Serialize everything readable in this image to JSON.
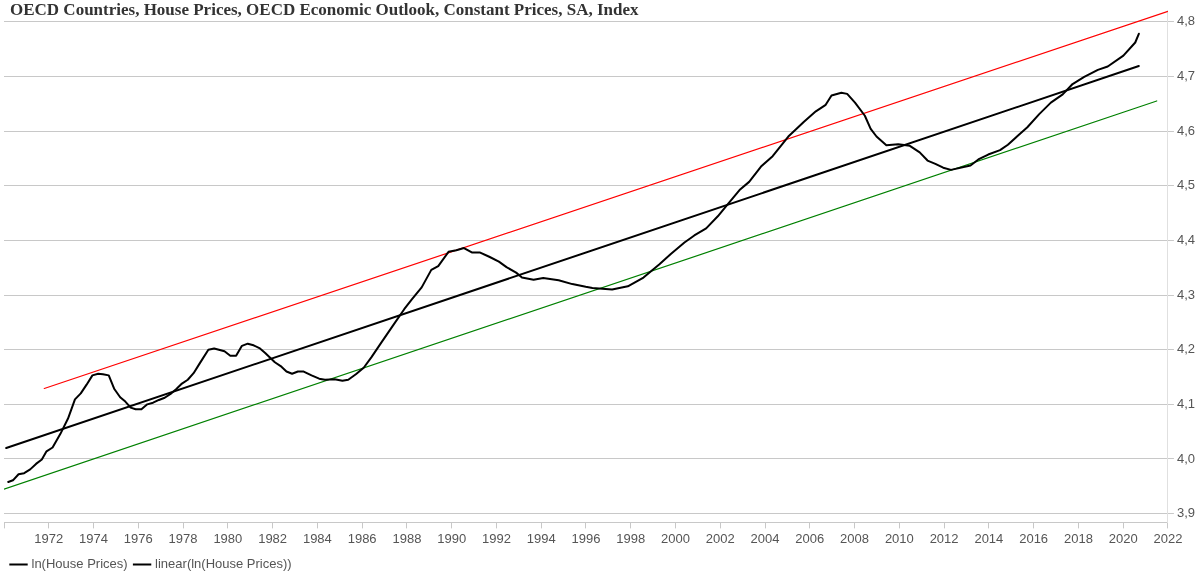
{
  "chart_data": {
    "type": "line",
    "title": "OECD Countries, House Prices, OECD Economic Outlook, Constant Prices, SA, Index",
    "xlim": [
      1970,
      2022
    ],
    "xticks": [
      {
        "value": 1970,
        "label": null
      },
      1972,
      1974,
      1976,
      1978,
      1980,
      1982,
      1984,
      1986,
      1988,
      1990,
      1992,
      1994,
      1996,
      1998,
      2000,
      2002,
      2004,
      2006,
      2008,
      2010,
      2012,
      2014,
      2016,
      2018,
      2020,
      2022
    ],
    "ylim": [
      3.884,
      4.82
    ],
    "yticks": [
      {
        "value": 3.9,
        "label": "3,9"
      },
      {
        "value": 4.0,
        "label": "4,0"
      },
      {
        "value": 4.1,
        "label": "4,1"
      },
      {
        "value": 4.2,
        "label": "4,2"
      },
      {
        "value": 4.3,
        "label": "4,3"
      },
      {
        "value": 4.4,
        "label": "4,4"
      },
      {
        "value": 4.5,
        "label": "4,5"
      },
      {
        "value": 4.6,
        "label": "4,6"
      },
      {
        "value": 4.7,
        "label": "4,7"
      },
      {
        "value": 4.8,
        "label": "4,8"
      }
    ],
    "grid": "y",
    "legend": "bottom left",
    "marker": "none",
    "line_style": "solid",
    "series": [
      {
        "name": "ln(House Prices)",
        "color": "#000000",
        "x": [
          1970.19,
          1970.4,
          1970.65,
          1970.9,
          1971.17,
          1971.43,
          1971.69,
          1971.9,
          1972.17,
          1972.52,
          1972.86,
          1973.17,
          1973.43,
          1973.69,
          1973.95,
          1974.21,
          1974.42,
          1974.68,
          1974.93,
          1975.19,
          1975.42,
          1975.66,
          1975.88,
          1976.14,
          1976.4,
          1976.66,
          1976.92,
          1977.18,
          1977.44,
          1977.7,
          1977.95,
          1978.21,
          1978.47,
          1978.73,
          1979.13,
          1979.39,
          1979.6,
          1979.85,
          1980.11,
          1980.37,
          1980.63,
          1980.89,
          1981.15,
          1981.41,
          1981.67,
          1982.1,
          1982.36,
          1982.62,
          1982.87,
          1983.13,
          1983.39,
          1983.74,
          1984.08,
          1984.34,
          1984.77,
          1985.12,
          1985.38,
          1985.72,
          1986.07,
          1986.41,
          1986.84,
          1987.36,
          1987.88,
          1988.22,
          1988.66,
          1989.09,
          1989.4,
          1989.86,
          1990.21,
          1990.55,
          1990.9,
          1991.25,
          1991.68,
          1992.11,
          1992.45,
          1992.88,
          1993.14,
          1993.66,
          1994.09,
          1994.78,
          1995.39,
          1995.99,
          1996.29,
          1997.17,
          1997.87,
          1998.57,
          1999.27,
          1999.79,
          2000.4,
          2000.84,
          2001.37,
          2001.89,
          2002.33,
          2002.86,
          2003.29,
          2003.82,
          2004.34,
          2005.04,
          2005.74,
          2006.27,
          2006.71,
          2006.97,
          2007.41,
          2007.67,
          2008.02,
          2008.46,
          2008.72,
          2008.98,
          2009.42,
          2009.95,
          2010.47,
          2010.91,
          2011.26,
          2011.61,
          2011.96,
          2012.31,
          2013.18,
          2013.53,
          2013.97,
          2014.5,
          2014.85,
          2015.28,
          2015.72,
          2016.25,
          2016.77,
          2017.3,
          2017.74,
          2018.26,
          2018.87,
          2019.31,
          2020.01,
          2020.54,
          2020.7
        ],
        "values": [
          3.958,
          3.961,
          3.972,
          3.974,
          3.981,
          3.991,
          3.999,
          4.014,
          4.021,
          4.046,
          4.074,
          4.109,
          4.12,
          4.136,
          4.153,
          4.156,
          4.155,
          4.153,
          4.128,
          4.113,
          4.105,
          4.094,
          4.091,
          4.091,
          4.1,
          4.103,
          4.108,
          4.112,
          4.119,
          4.128,
          4.138,
          4.145,
          4.157,
          4.174,
          4.2,
          4.202,
          4.2,
          4.197,
          4.189,
          4.189,
          4.207,
          4.211,
          4.208,
          4.203,
          4.194,
          4.177,
          4.17,
          4.16,
          4.156,
          4.16,
          4.16,
          4.153,
          4.147,
          4.145,
          4.146,
          4.143,
          4.145,
          4.155,
          4.167,
          4.186,
          4.212,
          4.243,
          4.274,
          4.292,
          4.314,
          4.346,
          4.353,
          4.379,
          4.382,
          4.386,
          4.378,
          4.378,
          4.37,
          4.361,
          4.351,
          4.341,
          4.332,
          4.328,
          4.331,
          4.327,
          4.32,
          4.315,
          4.313,
          4.31,
          4.316,
          4.332,
          4.356,
          4.375,
          4.396,
          4.409,
          4.422,
          4.444,
          4.466,
          4.492,
          4.507,
          4.535,
          4.554,
          4.59,
          4.617,
          4.636,
          4.648,
          4.665,
          4.67,
          4.668,
          4.652,
          4.628,
          4.604,
          4.59,
          4.574,
          4.576,
          4.573,
          4.561,
          4.546,
          4.54,
          4.533,
          4.529,
          4.537,
          4.548,
          4.557,
          4.565,
          4.575,
          4.591,
          4.607,
          4.631,
          4.652,
          4.667,
          4.686,
          4.699,
          4.712,
          4.718,
          4.738,
          4.762,
          4.778
        ]
      },
      {
        "name": "linear(ln(House Prices))",
        "color": "#000000",
        "x": [
          1970.1,
          2020.7
        ],
        "values": [
          4.02,
          4.719
        ]
      },
      {
        "color": "#ff0000",
        "x": [
          1971.8,
          2022
        ],
        "values": [
          4.129,
          4.819
        ]
      },
      {
        "color": "#008000",
        "x": [
          1970,
          2021.5
        ],
        "values": [
          3.945,
          4.655
        ]
      }
    ]
  }
}
